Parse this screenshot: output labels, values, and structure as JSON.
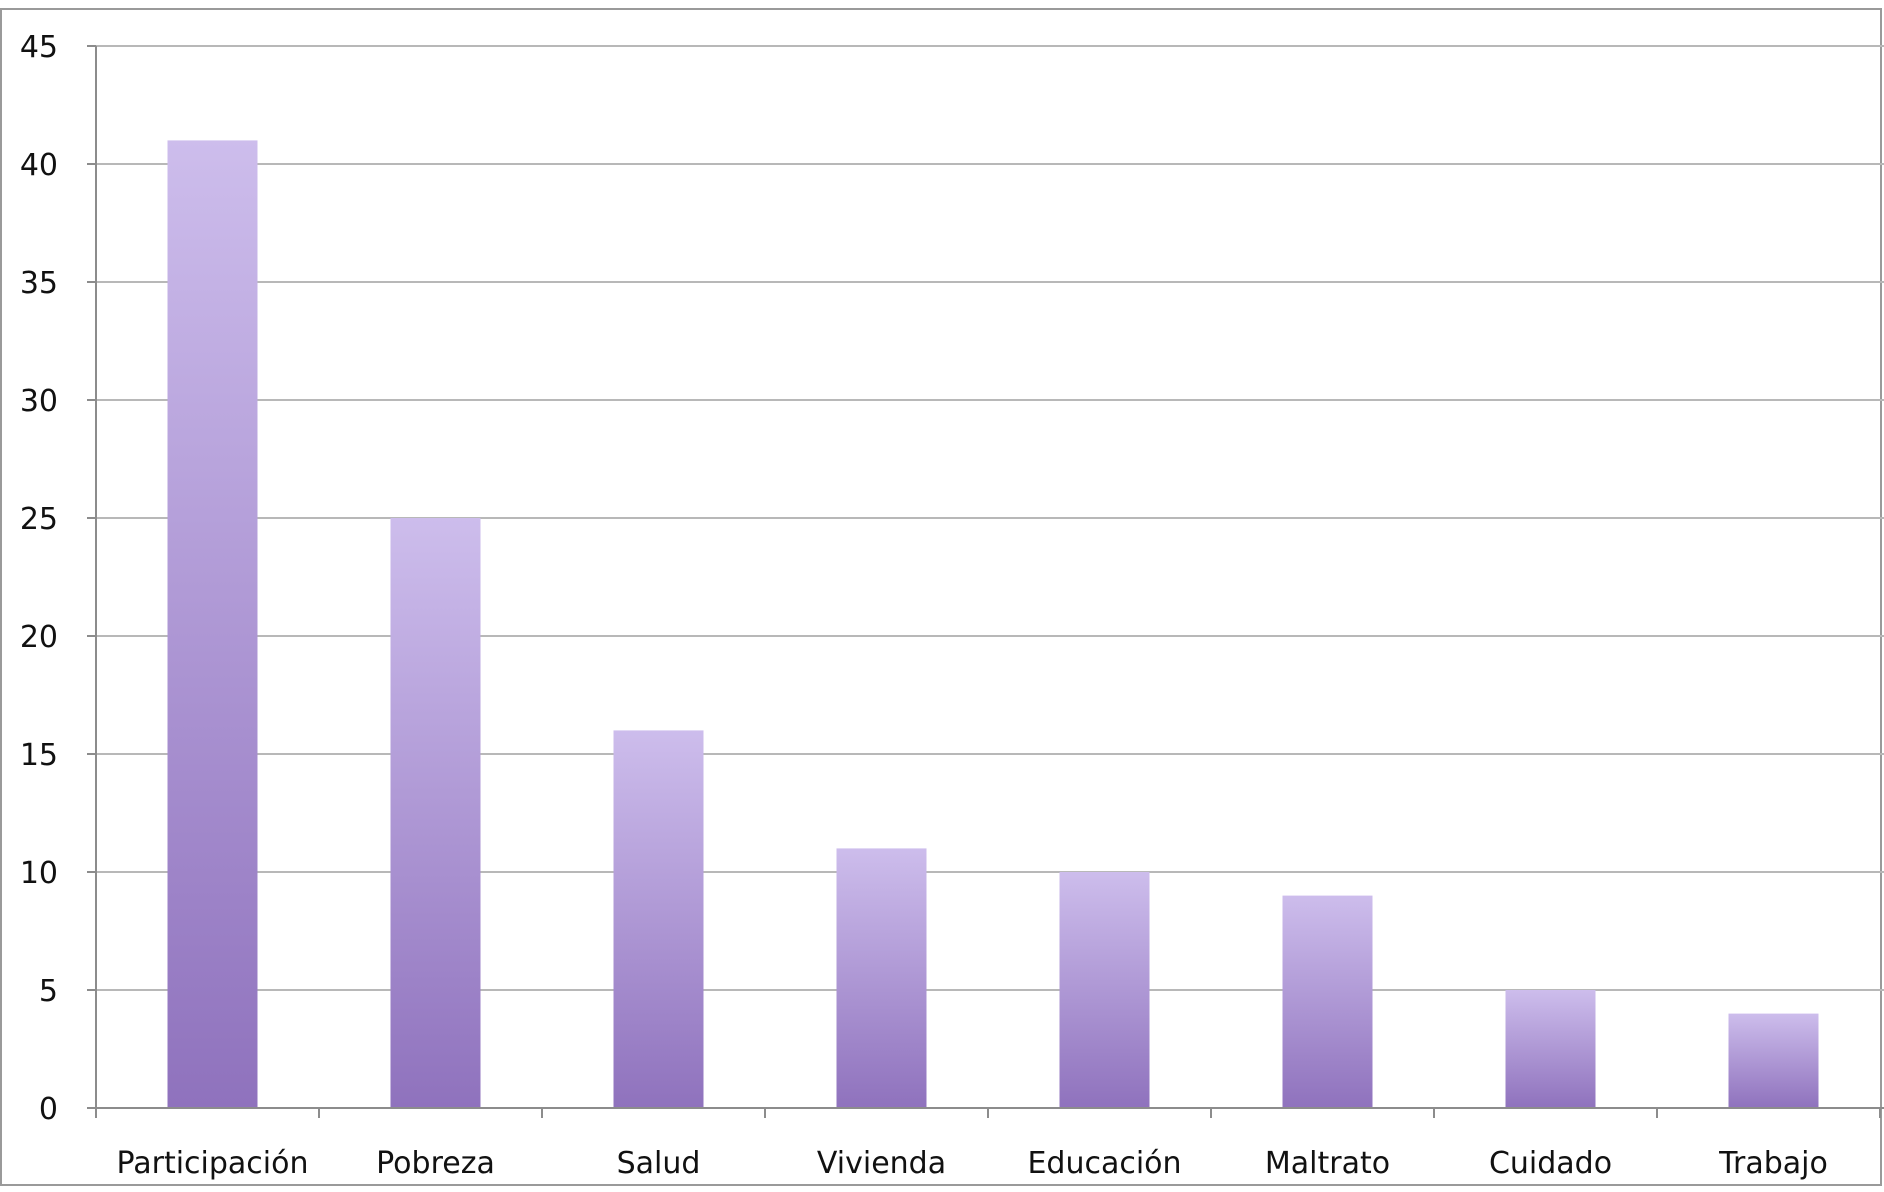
{
  "chart_data": {
    "type": "bar",
    "title": "",
    "xlabel": "",
    "ylabel": "",
    "categories": [
      "Participación",
      "Pobreza",
      "Salud",
      "Vivienda",
      "Educación",
      "Maltrato",
      "Cuidado",
      "Trabajo"
    ],
    "values": [
      41,
      25,
      16,
      11,
      10,
      9,
      5,
      4
    ],
    "ylim": [
      0,
      45
    ],
    "yticks": [
      0,
      5,
      10,
      15,
      20,
      25,
      30,
      35,
      40,
      45
    ],
    "ytick_labels": [
      "0",
      "5",
      "10",
      "15",
      "20",
      "25",
      "30",
      "35",
      "40",
      "45"
    ],
    "grid": true,
    "legend": "none",
    "colors": {
      "bar_top": "#cdbdec",
      "bar_bottom": "#8f72bd",
      "grid": "#b8b8b8",
      "axis": "#8c8c8c",
      "frame": "#9a9a9a",
      "text": "#111111"
    }
  }
}
